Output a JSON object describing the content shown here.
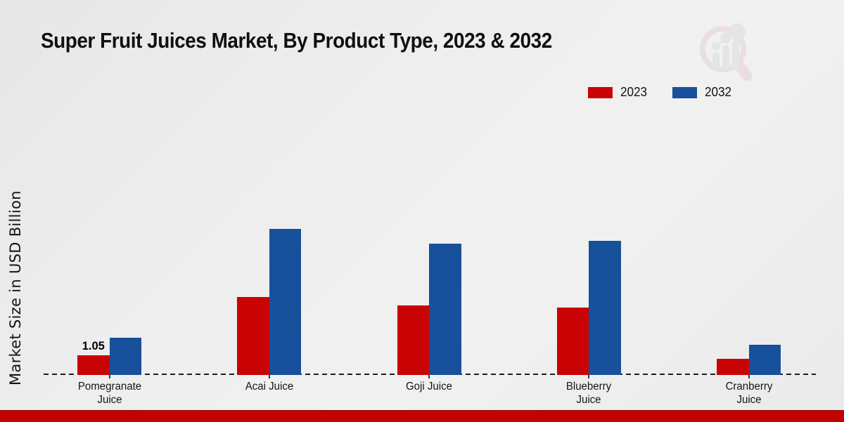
{
  "title": "Super Fruit Juices Market, By Product Type, 2023 & 2032",
  "y_axis_label": "Market Size in USD Billion",
  "colors": {
    "series_2023": "#c90303",
    "series_2032": "#17509b",
    "footer_bar": "#c40101",
    "axis_dashed_line": "#1c1c1c",
    "text": "#111111",
    "logo_pink": "#d9a3a7",
    "logo_gray": "#a9acb0"
  },
  "legend": {
    "position": "top-right",
    "items": [
      {
        "label": "2023",
        "color": "#c90303"
      },
      {
        "label": "2032",
        "color": "#17509b"
      }
    ]
  },
  "chart_data": {
    "type": "bar",
    "title": "Super Fruit Juices Market, By Product Type, 2023 & 2032",
    "ylabel": "Market Size in USD Billion",
    "xlabel": "",
    "unit": "USD Billion",
    "categories": [
      "Pomegranate Juice",
      "Acai Juice",
      "Goji Juice",
      "Blueberry Juice",
      "Cranberry Juice"
    ],
    "category_tick_lines": [
      [
        "Pomegranate",
        "Juice"
      ],
      [
        "Acai Juice"
      ],
      [
        "Goji Juice"
      ],
      [
        "Blueberry",
        "Juice"
      ],
      [
        "Cranberry",
        "Juice"
      ]
    ],
    "series": [
      {
        "name": "2023",
        "color": "#c90303",
        "values": [
          1.05,
          4.15,
          3.7,
          3.6,
          0.85
        ]
      },
      {
        "name": "2032",
        "color": "#17509b",
        "values": [
          2.0,
          7.8,
          7.0,
          7.15,
          1.6
        ]
      }
    ],
    "annotations": [
      {
        "text": "1.05",
        "category_index": 0,
        "series_index": 0
      }
    ],
    "ylim": [
      0,
      8.5
    ],
    "grid": false,
    "y_axis_ticks_visible": false,
    "baseline_style": "dashed",
    "legend_position": "top-right"
  },
  "branding": {
    "logo_icon": "magnifier-bar-chart",
    "footer_bar_color": "#c40101"
  }
}
